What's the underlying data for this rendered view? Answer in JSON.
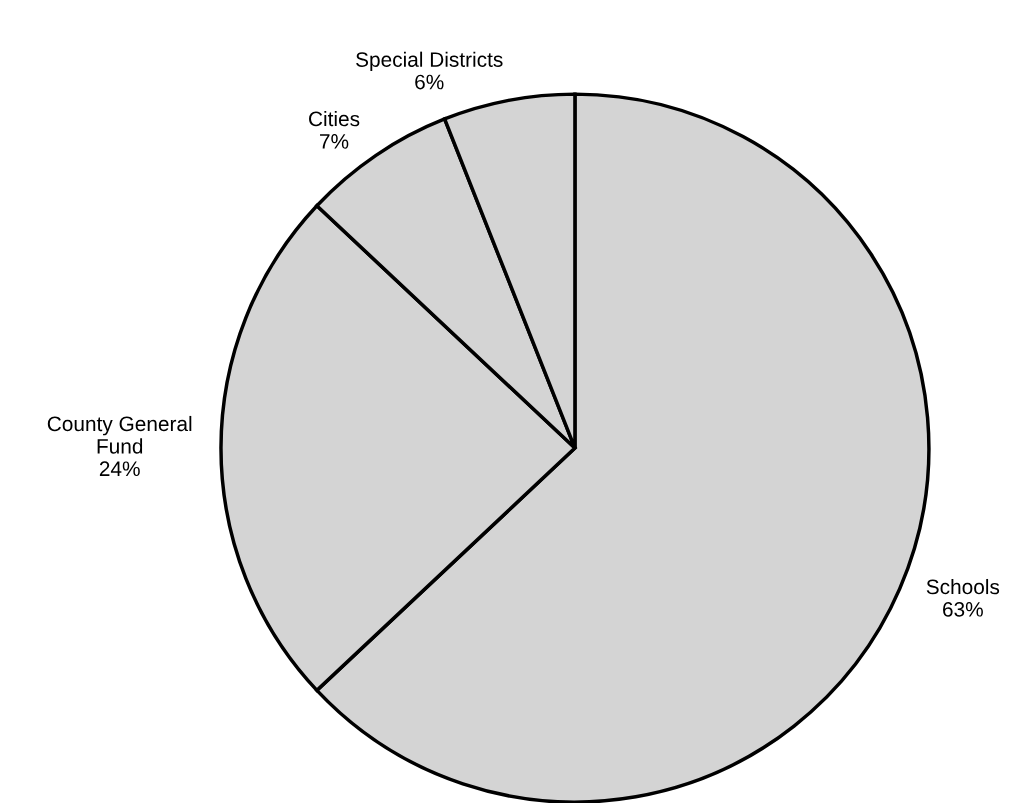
{
  "chart_data": {
    "type": "pie",
    "categories": [
      "Schools",
      "County General\nFund",
      "Cities",
      "Special Districts"
    ],
    "values": [
      63,
      24,
      7,
      6
    ],
    "value_labels": [
      "63%",
      "24%",
      "7%",
      "6%"
    ],
    "colors": [
      "#d4d4d4",
      "#d4d4d4",
      "#d4d4d4",
      "#d4d4d4"
    ],
    "legend": false
  }
}
